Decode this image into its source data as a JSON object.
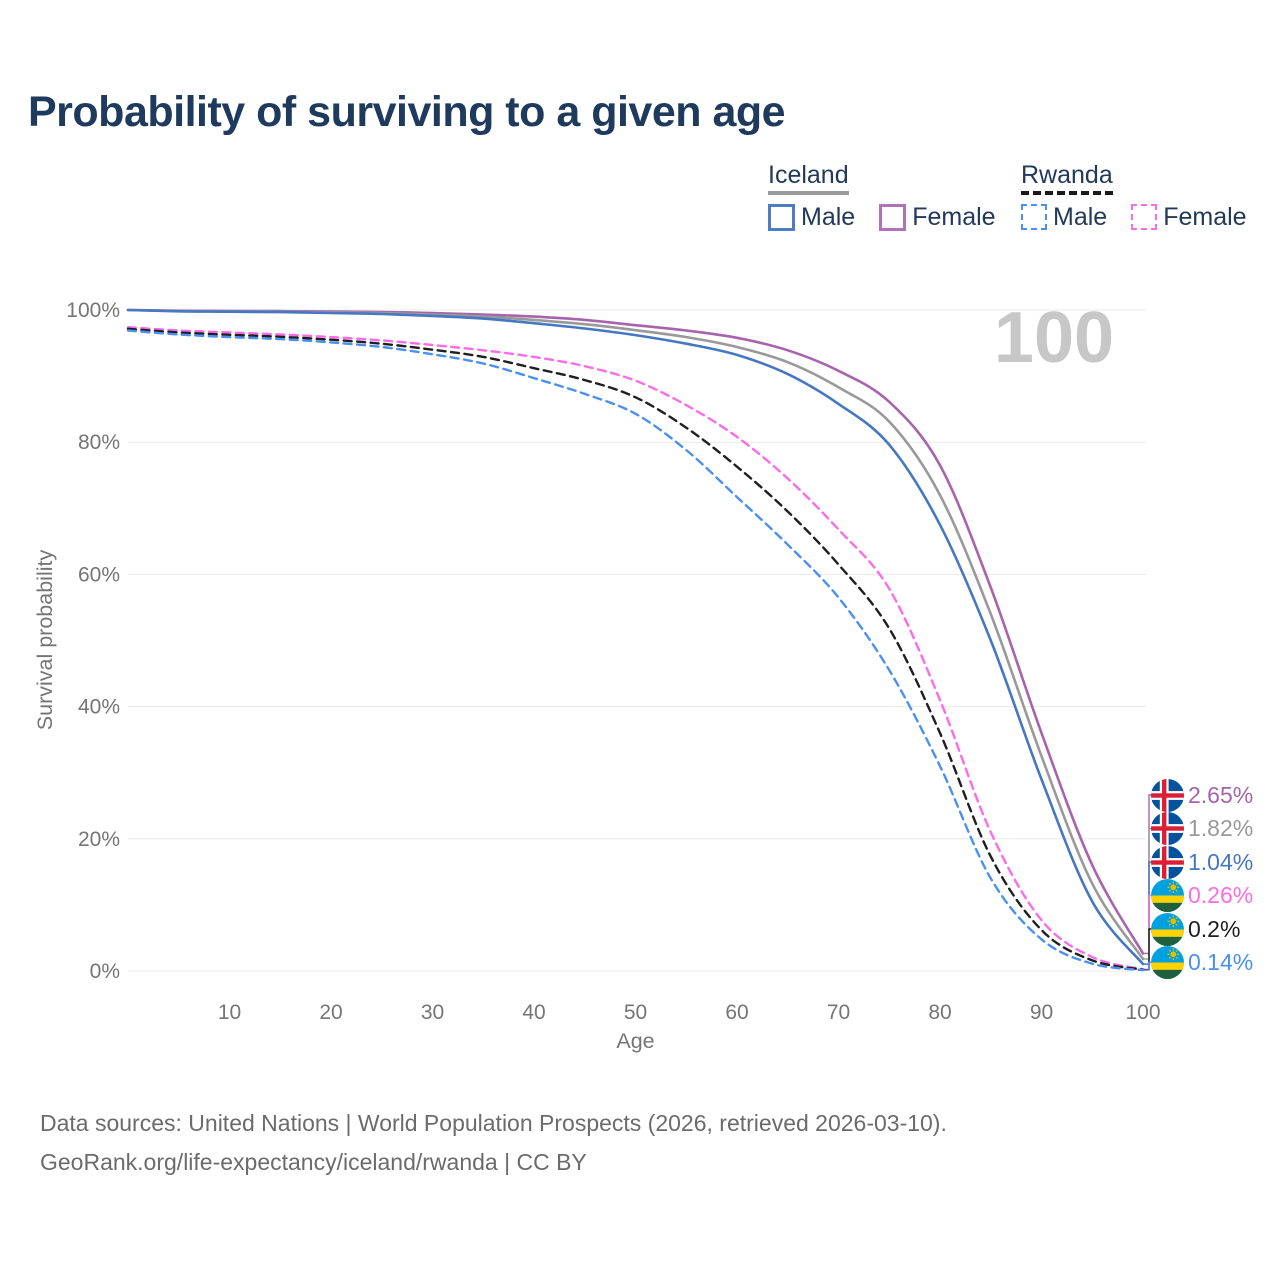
{
  "title": "Probability of surviving to a given age",
  "watermark": "100",
  "legend": {
    "groups": [
      {
        "name": "Iceland",
        "line_style": "solid",
        "underline_color": "#9a9a9a",
        "items": [
          {
            "label": "Male",
            "color": "#4d7cc3"
          },
          {
            "label": "Female",
            "color": "#b173b8"
          }
        ]
      },
      {
        "name": "Rwanda",
        "line_style": "dashed",
        "underline_color": "#1a1a1a",
        "items": [
          {
            "label": "Male",
            "color": "#4a90f2"
          },
          {
            "label": "Female",
            "color": "#fb6ce6"
          }
        ]
      }
    ]
  },
  "chart_data": {
    "type": "line",
    "title": "Probability of surviving to a given age",
    "xlabel": "Age",
    "ylabel": "Survival probability",
    "xlim": [
      0,
      100
    ],
    "ylim": [
      0,
      100
    ],
    "x_ticks": [
      10,
      20,
      30,
      40,
      50,
      60,
      70,
      80,
      90,
      100
    ],
    "y_ticks": [
      0,
      20,
      40,
      60,
      80,
      100
    ],
    "y_tick_suffix": "%",
    "grid": "horizontal",
    "gridline_color": "#e9e9e9",
    "tick_label_color": "#757575",
    "watermark_color": "#c7c7c7",
    "series": [
      {
        "name": "Iceland Female",
        "country": "Iceland",
        "sex": "Female",
        "style": "solid",
        "color": "#a763ab",
        "flag": "iceland",
        "end_label": "2.65%",
        "end_value": 2.65,
        "points": [
          [
            0,
            100
          ],
          [
            5,
            99.9
          ],
          [
            10,
            99.87
          ],
          [
            15,
            99.83
          ],
          [
            20,
            99.78
          ],
          [
            25,
            99.7
          ],
          [
            30,
            99.55
          ],
          [
            35,
            99.3
          ],
          [
            40,
            99.0
          ],
          [
            45,
            98.5
          ],
          [
            50,
            97.7
          ],
          [
            55,
            96.9
          ],
          [
            60,
            95.8
          ],
          [
            65,
            93.9
          ],
          [
            70,
            90.8
          ],
          [
            75,
            86.1
          ],
          [
            80,
            76.5
          ],
          [
            85,
            58
          ],
          [
            90,
            36
          ],
          [
            95,
            16
          ],
          [
            100,
            2.65
          ]
        ]
      },
      {
        "name": "Iceland",
        "country": "Iceland",
        "sex": "All",
        "style": "solid",
        "color": "#999999",
        "flag": "iceland",
        "end_label": "1.82%",
        "end_value": 1.82,
        "points": [
          [
            0,
            100
          ],
          [
            5,
            99.85
          ],
          [
            10,
            99.8
          ],
          [
            15,
            99.75
          ],
          [
            20,
            99.65
          ],
          [
            25,
            99.55
          ],
          [
            30,
            99.3
          ],
          [
            35,
            99.0
          ],
          [
            40,
            98.5
          ],
          [
            45,
            97.85
          ],
          [
            50,
            96.95
          ],
          [
            55,
            95.9
          ],
          [
            60,
            94.4
          ],
          [
            65,
            92.1
          ],
          [
            70,
            88.3
          ],
          [
            75,
            83.1
          ],
          [
            80,
            72
          ],
          [
            85,
            54
          ],
          [
            90,
            32.5
          ],
          [
            95,
            13.2
          ],
          [
            100,
            1.82
          ]
        ]
      },
      {
        "name": "Iceland Male",
        "country": "Iceland",
        "sex": "Male",
        "style": "solid",
        "color": "#4577c2",
        "flag": "iceland",
        "end_label": "1.04%",
        "end_value": 1.04,
        "points": [
          [
            0,
            100
          ],
          [
            5,
            99.8
          ],
          [
            10,
            99.75
          ],
          [
            15,
            99.68
          ],
          [
            20,
            99.55
          ],
          [
            25,
            99.4
          ],
          [
            30,
            99.1
          ],
          [
            35,
            98.7
          ],
          [
            40,
            98.0
          ],
          [
            45,
            97.2
          ],
          [
            50,
            96.2
          ],
          [
            55,
            94.9
          ],
          [
            60,
            93.2
          ],
          [
            65,
            90.3
          ],
          [
            70,
            85.8
          ],
          [
            75,
            79.6
          ],
          [
            80,
            67.5
          ],
          [
            85,
            50
          ],
          [
            90,
            29
          ],
          [
            95,
            10.5
          ],
          [
            100,
            1.04
          ]
        ]
      },
      {
        "name": "Rwanda Female",
        "country": "Rwanda",
        "sex": "Female",
        "style": "dashed",
        "color": "#fb6ce6",
        "flag": "rwanda",
        "end_label": "0.26%",
        "end_value": 0.26,
        "points": [
          [
            0,
            97.4
          ],
          [
            5,
            96.9
          ],
          [
            10,
            96.6
          ],
          [
            15,
            96.3
          ],
          [
            20,
            95.9
          ],
          [
            25,
            95.4
          ],
          [
            30,
            94.7
          ],
          [
            35,
            93.9
          ],
          [
            40,
            92.9
          ],
          [
            45,
            91.5
          ],
          [
            50,
            89.3
          ],
          [
            55,
            85.6
          ],
          [
            60,
            80.8
          ],
          [
            65,
            74.5
          ],
          [
            70,
            66.8
          ],
          [
            75,
            57.8
          ],
          [
            80,
            41
          ],
          [
            85,
            21
          ],
          [
            90,
            7.7
          ],
          [
            95,
            2.1
          ],
          [
            100,
            0.26
          ]
        ]
      },
      {
        "name": "Rwanda",
        "country": "Rwanda",
        "sex": "All",
        "style": "dashed",
        "color": "#1f1f1f",
        "flag": "rwanda",
        "end_label": "0.2%",
        "end_value": 0.2,
        "points": [
          [
            0,
            97.15
          ],
          [
            5,
            96.6
          ],
          [
            10,
            96.25
          ],
          [
            15,
            95.95
          ],
          [
            20,
            95.5
          ],
          [
            25,
            94.9
          ],
          [
            30,
            94.0
          ],
          [
            35,
            92.9
          ],
          [
            40,
            91.2
          ],
          [
            45,
            89.4
          ],
          [
            50,
            86.8
          ],
          [
            55,
            82.2
          ],
          [
            60,
            76.3
          ],
          [
            65,
            69.5
          ],
          [
            70,
            61.5
          ],
          [
            75,
            51.8
          ],
          [
            80,
            36
          ],
          [
            85,
            17.3
          ],
          [
            90,
            6.2
          ],
          [
            95,
            1.6
          ],
          [
            100,
            0.2
          ]
        ]
      },
      {
        "name": "Rwanda Male",
        "country": "Rwanda",
        "sex": "Male",
        "style": "dashed",
        "color": "#4a90f2",
        "flag": "rwanda",
        "end_label": "0.14%",
        "end_value": 0.14,
        "points": [
          [
            0,
            96.9
          ],
          [
            5,
            96.3
          ],
          [
            10,
            95.9
          ],
          [
            15,
            95.6
          ],
          [
            20,
            95.1
          ],
          [
            25,
            94.4
          ],
          [
            30,
            93.3
          ],
          [
            35,
            91.9
          ],
          [
            40,
            89.7
          ],
          [
            45,
            87.3
          ],
          [
            50,
            84.3
          ],
          [
            55,
            78.8
          ],
          [
            60,
            71.7
          ],
          [
            65,
            64.5
          ],
          [
            70,
            56.5
          ],
          [
            75,
            45.5
          ],
          [
            80,
            31
          ],
          [
            85,
            14
          ],
          [
            90,
            4.8
          ],
          [
            95,
            1.1
          ],
          [
            100,
            0.14
          ]
        ]
      }
    ]
  },
  "footer": {
    "line1": "Data sources: United Nations | World Population Prospects (2026, retrieved 2026-03-10).",
    "line2": "GeoRank.org/life-expectancy/iceland/rwanda | CC BY"
  }
}
